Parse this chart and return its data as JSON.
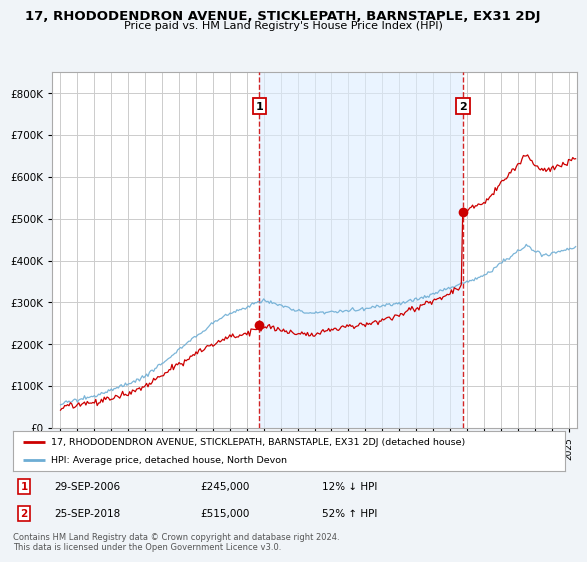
{
  "title": "17, RHODODENDRON AVENUE, STICKLEPATH, BARNSTAPLE, EX31 2DJ",
  "subtitle": "Price paid vs. HM Land Registry's House Price Index (HPI)",
  "hpi_label": "HPI: Average price, detached house, North Devon",
  "property_label": "17, RHODODENDRON AVENUE, STICKLEPATH, BARNSTAPLE, EX31 2DJ (detached house)",
  "footnote": "Contains HM Land Registry data © Crown copyright and database right 2024.\nThis data is licensed under the Open Government Licence v3.0.",
  "sale1_date": "29-SEP-2006",
  "sale1_price": 245000,
  "sale1_pct": "12% ↓ HPI",
  "sale2_date": "25-SEP-2018",
  "sale2_price": 515000,
  "sale2_pct": "52% ↑ HPI",
  "sale1_x": 2006.75,
  "sale2_x": 2018.75,
  "ylim": [
    0,
    850000
  ],
  "xlim_start": 1994.5,
  "xlim_end": 2025.5,
  "property_color": "#cc0000",
  "hpi_color": "#6dadd4",
  "vline_color": "#cc0000",
  "fill_color": "#ddeeff",
  "background_color": "#f0f4f8",
  "plot_bg": "#ffffff",
  "grid_color": "#cccccc"
}
